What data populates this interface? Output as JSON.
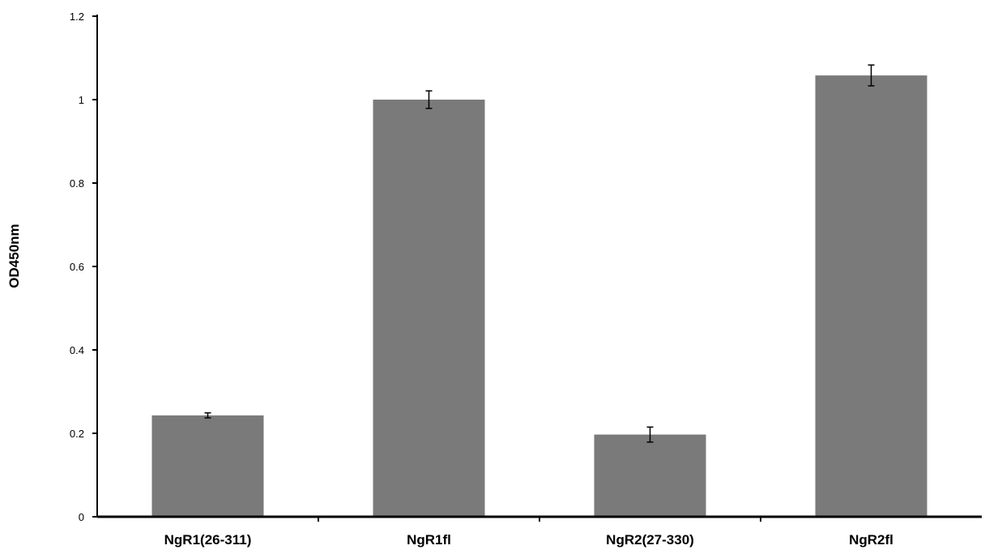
{
  "chart_data": {
    "type": "bar",
    "title": "",
    "xlabel": "",
    "ylabel": "OD450nm",
    "categories": [
      "NgR1(26-311)",
      "NgR1fl",
      "NgR2(27-330)",
      "NgR2fl"
    ],
    "values": [
      0.243,
      1.0,
      0.197,
      1.058
    ],
    "errors": [
      0.006,
      0.021,
      0.018,
      0.025
    ],
    "ylim": [
      0,
      1.2
    ],
    "yticks": [
      "0",
      "0.2",
      "0.4",
      "0.6",
      "0.8",
      "1",
      "1.2"
    ],
    "grid": false,
    "legend": "none",
    "colors": {
      "bar": "#7a7a7a",
      "axis": "#000000",
      "error_bar": "#000000"
    }
  }
}
